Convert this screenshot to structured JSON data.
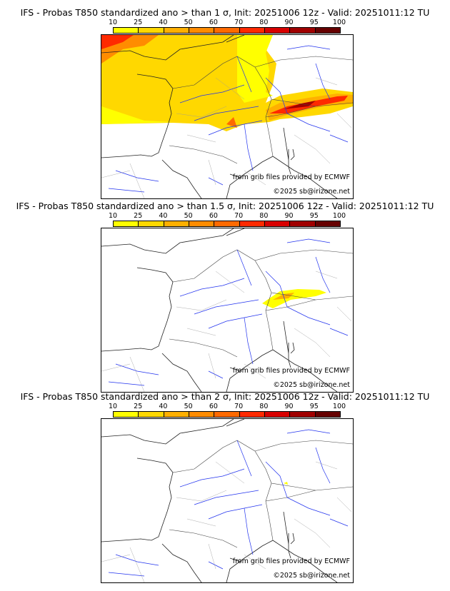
{
  "colorbar": {
    "ticks": [
      "10",
      "25",
      "40",
      "50",
      "60",
      "70",
      "80",
      "90",
      "95",
      "100"
    ],
    "colors": [
      "#ffff00",
      "#ffd800",
      "#ffb000",
      "#ff8c00",
      "#ff6a00",
      "#ff2a00",
      "#d80000",
      "#a00000",
      "#660000"
    ]
  },
  "panels": [
    {
      "title": "IFS - Probas T850  standardized ano > than 1 σ, Init: 20251006 12z - Valid: 20251011:12 TU",
      "credit1": "from grib files provided by ECMWF",
      "credit2": "©2025 sb@irizone.net",
      "level": 1
    },
    {
      "title": "IFS - Probas T850  standardized ano > than 1.5 σ, Init: 20251006 12z - Valid: 20251011:12 TU",
      "credit1": "from grib files provided by ECMWF",
      "credit2": "©2025 sb@irizone.net",
      "level": 2
    },
    {
      "title": "IFS - Probas T850  standardized ano > than 2 σ, Init: 20251006 12z - Valid: 20251011:12 TU",
      "credit1": "from grib files provided by ECMWF",
      "credit2": "©2025 sb@irizone.net",
      "level": 3
    }
  ]
}
